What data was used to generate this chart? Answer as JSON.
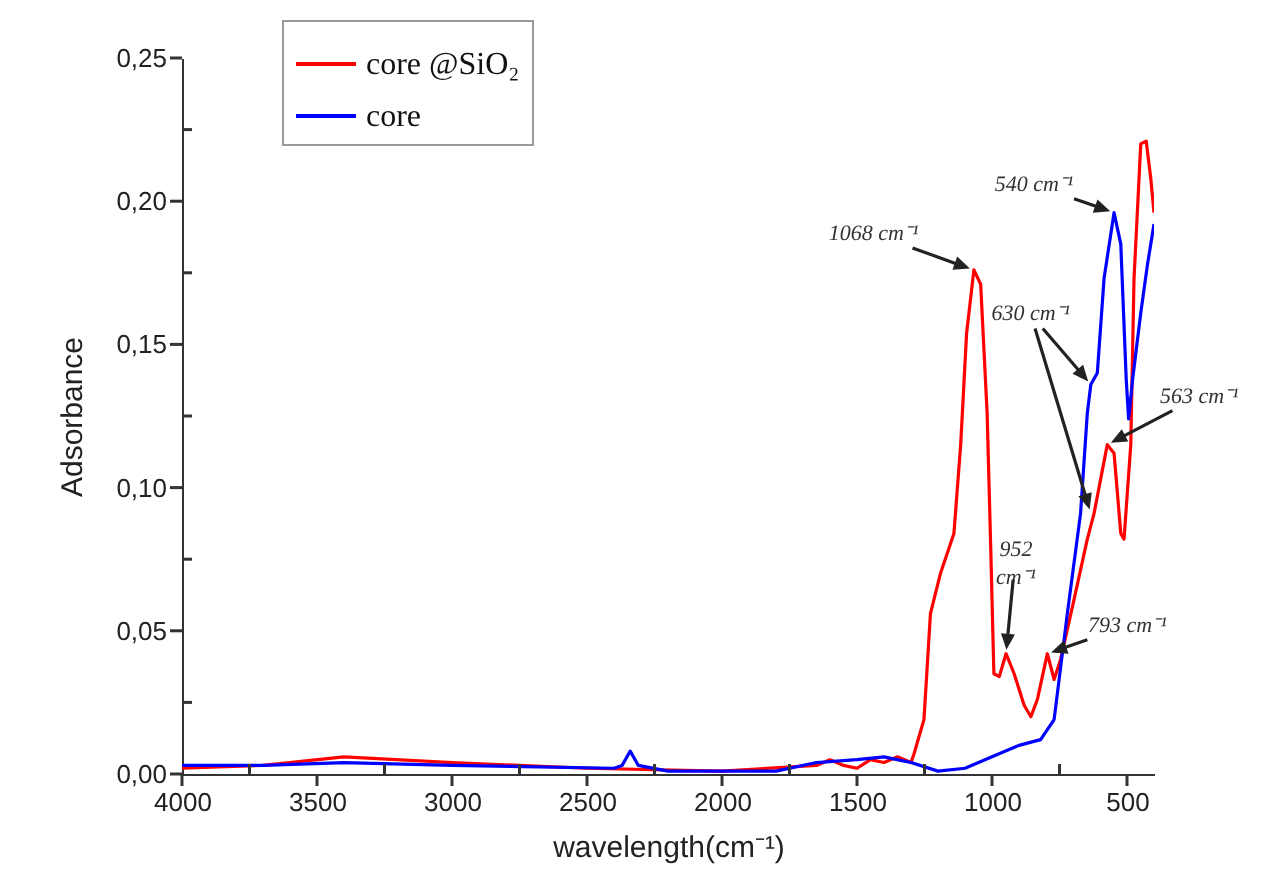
{
  "chart_data": {
    "type": "line",
    "xlabel": "wavelength(cm⁻¹)",
    "ylabel": "Adsorbance",
    "xlim": [
      4000,
      400
    ],
    "ylim": [
      0,
      0.25
    ],
    "xticks": [
      4000,
      {
        "value": 3750,
        "label": null
      },
      3500,
      {
        "value": 3250,
        "label": null
      },
      3000,
      {
        "value": 2750,
        "label": null
      },
      2500,
      {
        "value": 2250,
        "label": null
      },
      2000,
      {
        "value": 1750,
        "label": null
      },
      1500,
      {
        "value": 1250,
        "label": null
      },
      1000,
      {
        "value": 750,
        "label": null
      },
      500
    ],
    "yticks": [
      {
        "value": 0,
        "label": "0,00"
      },
      {
        "value": 0.025,
        "label": null
      },
      {
        "value": 0.05,
        "label": "0,05"
      },
      {
        "value": 0.075,
        "label": null
      },
      {
        "value": 0.1,
        "label": "0,10"
      },
      {
        "value": 0.125,
        "label": null
      },
      {
        "value": 0.15,
        "label": "0,15"
      },
      {
        "value": 0.175,
        "label": null
      },
      {
        "value": 0.2,
        "label": "0,20"
      },
      {
        "value": 0.225,
        "label": null
      },
      {
        "value": 0.25,
        "label": "0,25"
      }
    ],
    "legend": "top left",
    "line_style": "solid",
    "series": [
      {
        "name": "core @SiO₂",
        "color": "#ff0000",
        "x": [
          4000,
          3700,
          3400,
          3000,
          2500,
          2000,
          1650,
          1600,
          1550,
          1500,
          1450,
          1400,
          1350,
          1300,
          1289,
          1252,
          1228,
          1191,
          1141,
          1116,
          1094,
          1067,
          1042,
          1018,
          1005,
          993,
          973,
          948,
          918,
          881,
          856,
          832,
          795,
          770,
          746,
          696,
          647,
          622,
          573,
          548,
          523,
          511,
          486,
          474,
          449,
          429,
          412,
          400
        ],
        "values": [
          0.002,
          0.003,
          0.006,
          0.004,
          0.002,
          0.001,
          0.003,
          0.005,
          0.003,
          0.002,
          0.005,
          0.004,
          0.006,
          0.004,
          0.007,
          0.019,
          0.056,
          0.07,
          0.084,
          0.115,
          0.154,
          0.176,
          0.171,
          0.126,
          0.08,
          0.035,
          0.034,
          0.042,
          0.035,
          0.024,
          0.02,
          0.026,
          0.042,
          0.033,
          0.04,
          0.061,
          0.082,
          0.091,
          0.115,
          0.112,
          0.084,
          0.082,
          0.115,
          0.173,
          0.22,
          0.221,
          0.208,
          0.196
        ]
      },
      {
        "name": "core",
        "color": "#0000ff",
        "x": [
          4000,
          3700,
          3400,
          3000,
          2400,
          2370,
          2340,
          2310,
          2200,
          1800,
          1650,
          1500,
          1400,
          1300,
          1200,
          1100,
          1000,
          900,
          820,
          770,
          721,
          672,
          647,
          634,
          610,
          585,
          548,
          523,
          503,
          494,
          479,
          449,
          424,
          400
        ],
        "values": [
          0.003,
          0.003,
          0.004,
          0.003,
          0.002,
          0.003,
          0.008,
          0.003,
          0.001,
          0.001,
          0.004,
          0.005,
          0.006,
          0.004,
          0.001,
          0.002,
          0.006,
          0.01,
          0.012,
          0.019,
          0.056,
          0.091,
          0.126,
          0.136,
          0.14,
          0.173,
          0.196,
          0.185,
          0.138,
          0.124,
          0.138,
          0.161,
          0.178,
          0.192
        ]
      }
    ],
    "annotations": [
      {
        "text": "1068 cm⁻¹",
        "x": 1068,
        "y": 0.176
      },
      {
        "text": "630 cm⁻¹",
        "x": 634,
        "y": 0.136
      },
      {
        "text": "952 cm⁻¹",
        "x": 948,
        "y": 0.042
      },
      {
        "text": "793 cm⁻¹",
        "x": 795,
        "y": 0.042
      },
      {
        "text": "563 cm⁻¹",
        "x": 573,
        "y": 0.115
      },
      {
        "text": "540 cm⁻¹",
        "x": 548,
        "y": 0.196
      }
    ]
  }
}
